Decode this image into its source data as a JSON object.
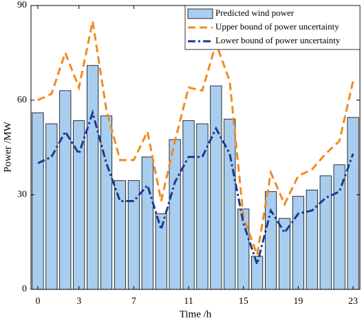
{
  "chart_data": {
    "type": "bar",
    "x": [
      0,
      1,
      2,
      3,
      4,
      5,
      6,
      7,
      8,
      9,
      10,
      11,
      12,
      13,
      14,
      15,
      16,
      17,
      18,
      19,
      20,
      21,
      22,
      23
    ],
    "xlim": [
      -0.5,
      23.5
    ],
    "xticks": [
      0,
      3,
      7,
      11,
      15,
      19,
      23
    ],
    "ylim": [
      0,
      90
    ],
    "yticks": [
      0,
      30,
      60,
      90
    ],
    "x_label": "Time /h",
    "y_label": "Power /MW",
    "legend": "upper right",
    "series": [
      {
        "name": "Predicted wind power",
        "type": "bar",
        "color": "#a9cdef",
        "values": [
          56,
          52.5,
          63,
          53.5,
          71,
          55,
          34.5,
          34.5,
          42,
          24,
          47.5,
          53.5,
          52.5,
          64.5,
          54,
          25.5,
          10.5,
          31,
          22.5,
          29.5,
          31.5,
          36,
          39.5,
          54.5
        ]
      },
      {
        "name": "Upper bound of power uncertainty",
        "type": "line",
        "color": "#f28a1e",
        "dash": "11,6",
        "values": [
          60,
          62,
          75,
          64,
          85,
          57,
          41,
          41,
          50,
          28,
          47,
          64,
          63,
          78,
          66,
          23,
          11,
          37,
          27,
          36,
          38,
          43,
          47,
          66
        ]
      },
      {
        "name": "Lower bound of power uncertainty",
        "type": "line",
        "color": "#1a3a8f",
        "dash": "11,4,3,4",
        "values": [
          40,
          42,
          50,
          43,
          56,
          40,
          28,
          28,
          33,
          19,
          34,
          42,
          42,
          51,
          43,
          21,
          8,
          25,
          18,
          24,
          25,
          29,
          31,
          43
        ]
      }
    ]
  }
}
